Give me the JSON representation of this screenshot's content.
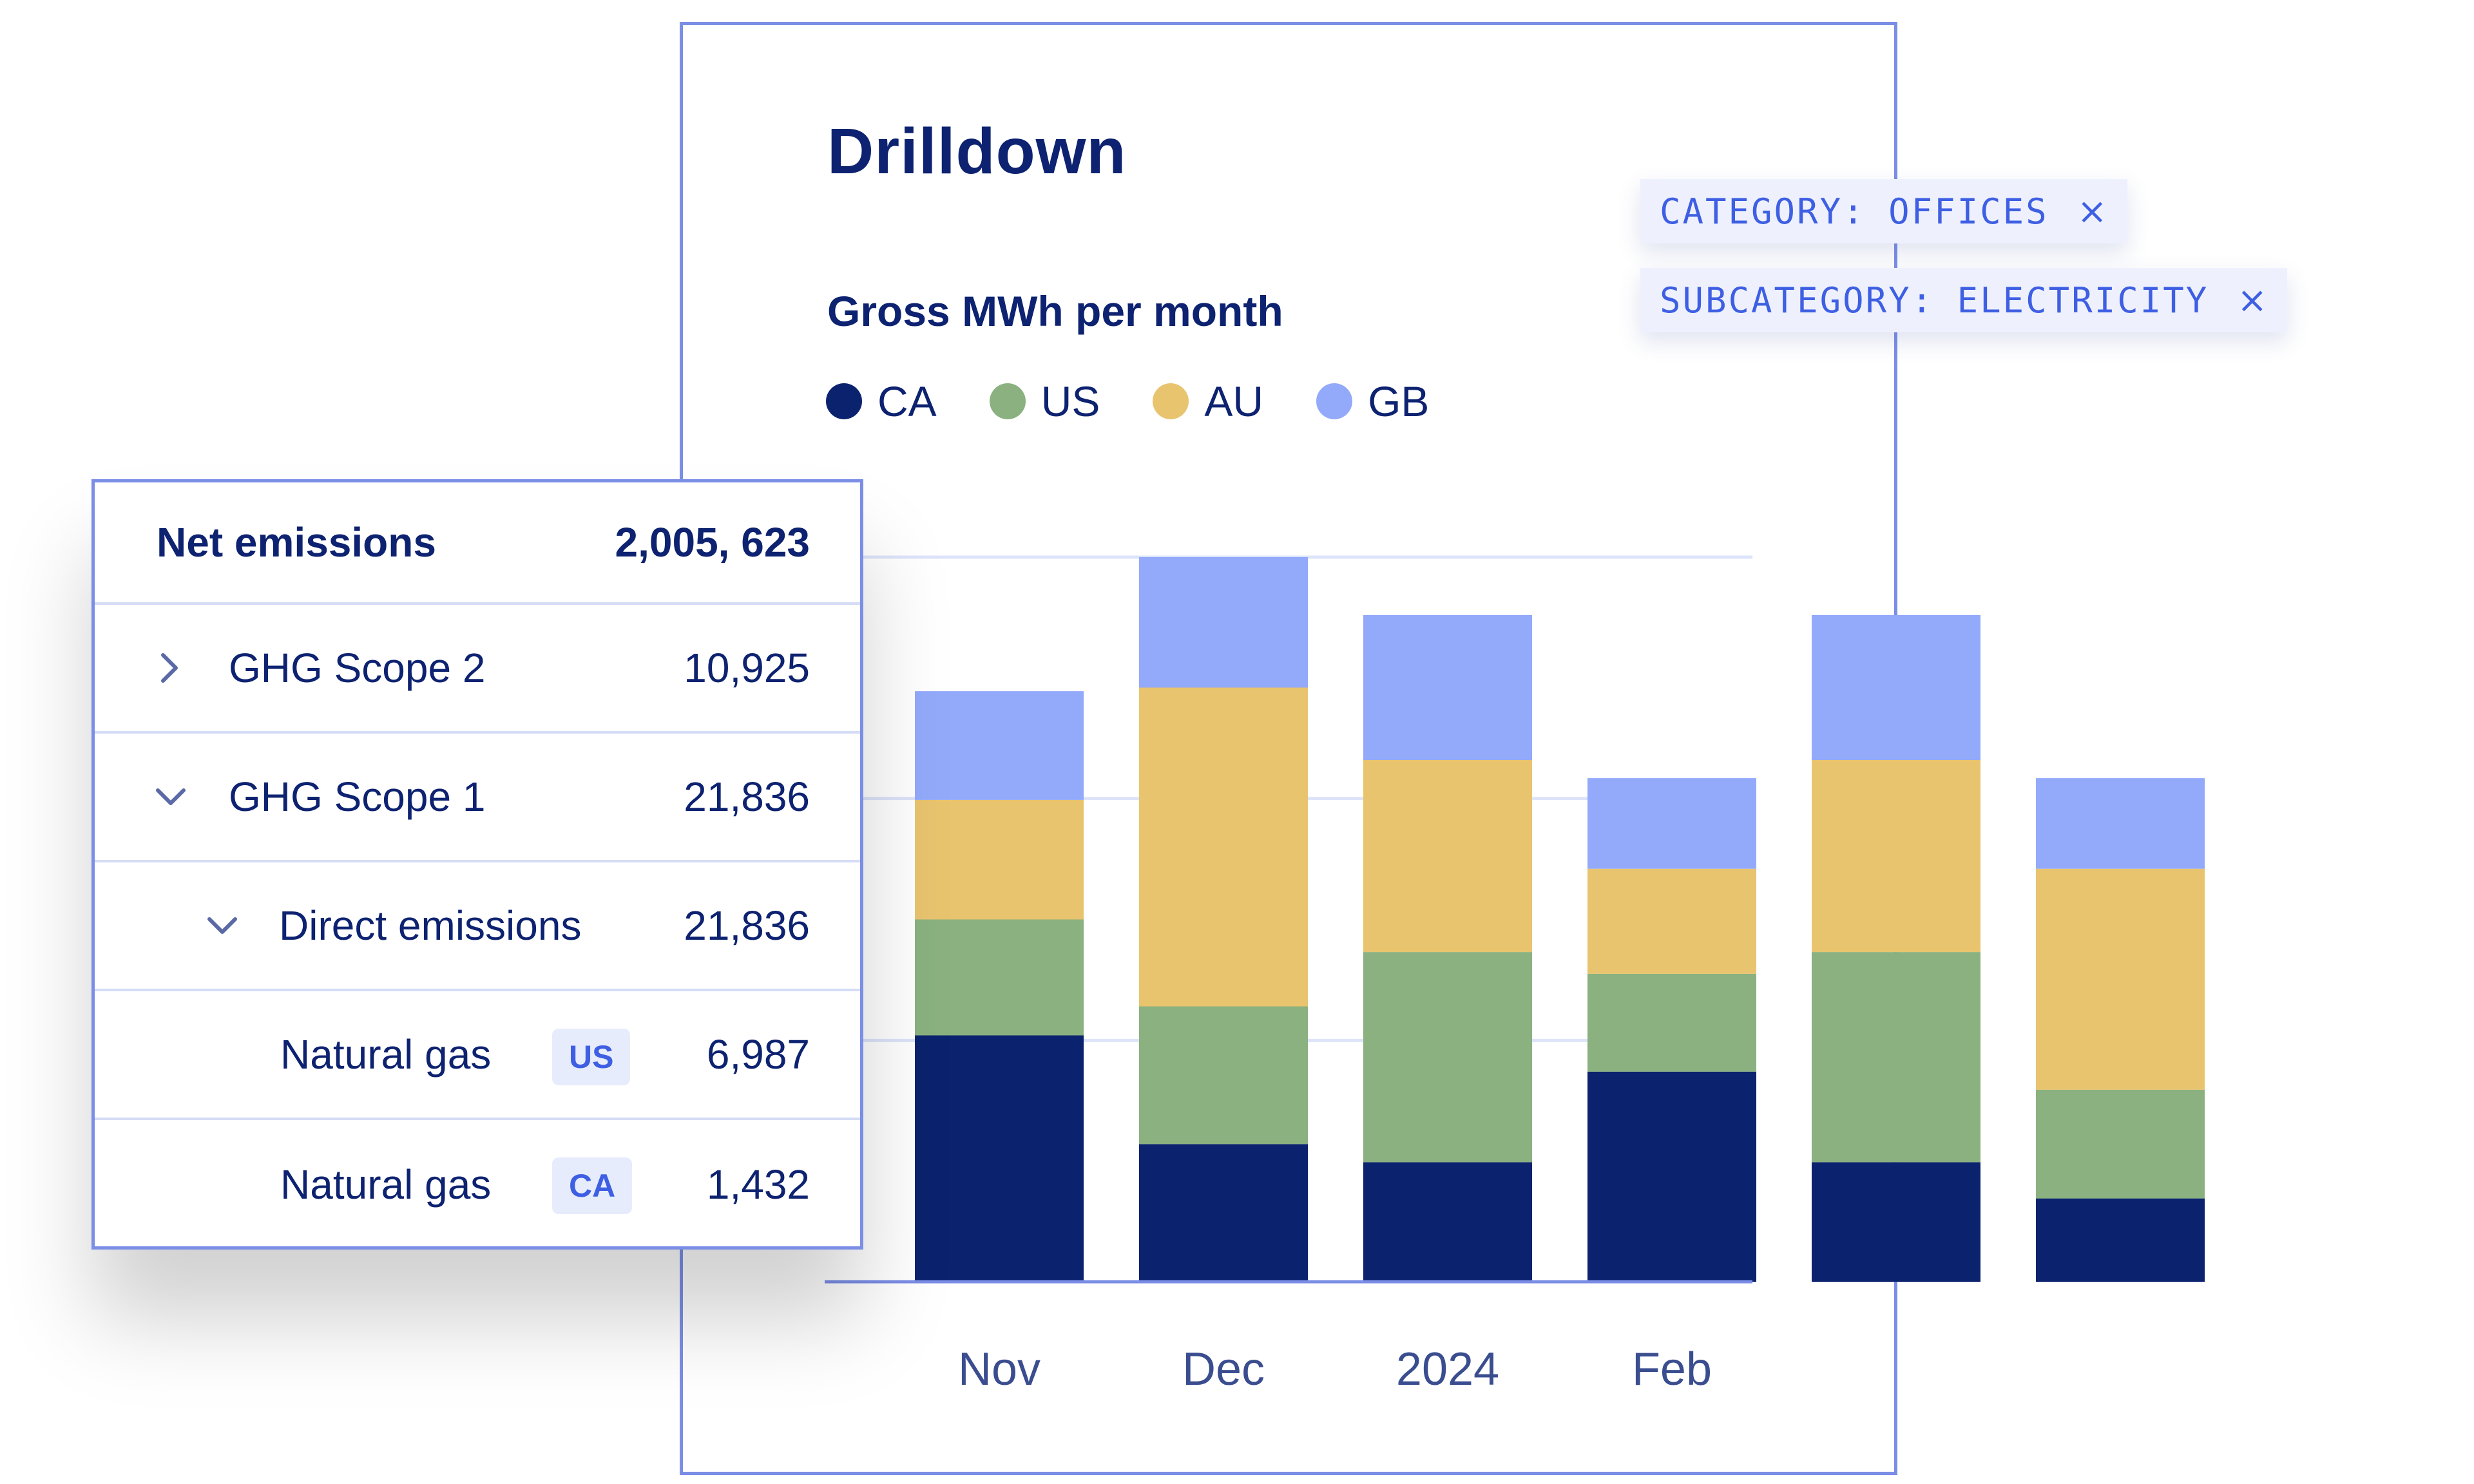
{
  "header": {
    "title": "Drilldown",
    "subtitle": "Gross MWh per month"
  },
  "filters": [
    {
      "label": "CATEGORY: OFFICES",
      "close": "×"
    },
    {
      "label": "SUBCATEGORY: ELECTRICITY",
      "close": "×"
    }
  ],
  "colors": {
    "CA": "#0b226e",
    "US": "#8ab17f",
    "AU": "#e8c46f",
    "GB": "#93a9fa",
    "axis": "#7b8ee6",
    "grid": "#dde4fa"
  },
  "chart_data": {
    "type": "bar",
    "stacked": true,
    "title": "Gross MWh per month",
    "xlabel": "",
    "ylabel": "",
    "ylim": [
      0,
      100
    ],
    "categories": [
      "Nov",
      "Dec",
      "2024",
      "Feb",
      "",
      ""
    ],
    "series": [
      {
        "name": "CA",
        "values": [
          34,
          19,
          16.5,
          29,
          16.5,
          11.5
        ]
      },
      {
        "name": "US",
        "values": [
          16,
          19,
          29,
          13.5,
          29,
          15
        ]
      },
      {
        "name": "AU",
        "values": [
          16.5,
          44,
          26.5,
          14.5,
          26.5,
          30.5
        ]
      },
      {
        "name": "GB",
        "values": [
          15,
          18,
          20,
          12.5,
          20,
          12.5
        ]
      }
    ]
  },
  "table": {
    "header": {
      "label": "Net emissions",
      "value": "2,005, 623"
    },
    "rows": [
      {
        "label": "GHG Scope 2",
        "value": "10,925",
        "chevron": "right"
      },
      {
        "label": "GHG Scope 1",
        "value": "21,836",
        "chevron": "down"
      },
      {
        "label": "Direct emissions",
        "value": "21,836",
        "chevron": "down"
      },
      {
        "label": "Natural gas",
        "tag": "US",
        "value": "6,987"
      },
      {
        "label": "Natural gas",
        "tag": "CA",
        "value": "1,432"
      }
    ]
  }
}
